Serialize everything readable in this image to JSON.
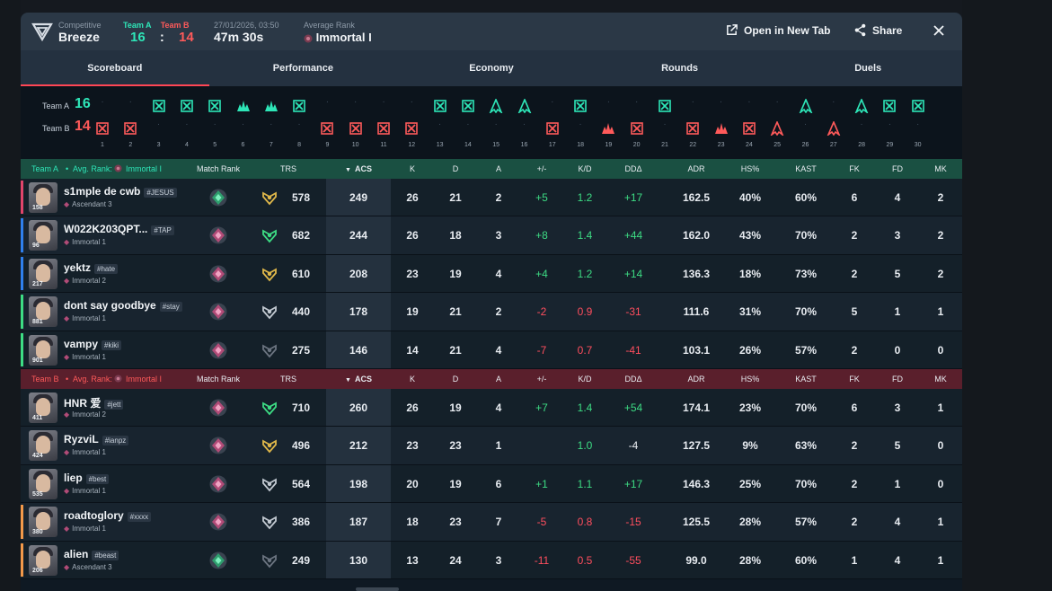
{
  "header": {
    "mode": "Competitive",
    "map": "Breeze",
    "team_a_label": "Team A",
    "team_b_label": "Team B",
    "score_a": "16",
    "score_sep": ":",
    "score_b": "14",
    "date": "27/01/2026, 03:50",
    "duration": "47m 30s",
    "avg_rank_label": "Average Rank",
    "avg_rank": "Immortal I",
    "open_tab_label": "Open in New Tab",
    "share_label": "Share"
  },
  "tabs": [
    "Scoreboard",
    "Performance",
    "Economy",
    "Rounds",
    "Duels"
  ],
  "active_tab": "Scoreboard",
  "timeline": {
    "team_a_label": "Team A",
    "team_b_label": "Team B",
    "score_a": "16",
    "score_b": "14",
    "rounds": [
      {
        "n": "1",
        "winner": "B",
        "type": "elim"
      },
      {
        "n": "2",
        "winner": "B",
        "type": "elim"
      },
      {
        "n": "3",
        "winner": "A",
        "type": "elim"
      },
      {
        "n": "4",
        "winner": "A",
        "type": "elim"
      },
      {
        "n": "5",
        "winner": "A",
        "type": "elim"
      },
      {
        "n": "6",
        "winner": "A",
        "type": "spike"
      },
      {
        "n": "7",
        "winner": "A",
        "type": "spike"
      },
      {
        "n": "8",
        "winner": "A",
        "type": "elim"
      },
      {
        "n": "9",
        "winner": "B",
        "type": "elim"
      },
      {
        "n": "10",
        "winner": "B",
        "type": "elim"
      },
      {
        "n": "11",
        "winner": "B",
        "type": "elim"
      },
      {
        "n": "12",
        "winner": "B",
        "type": "elim"
      },
      {
        "n": "13",
        "winner": "A",
        "type": "elim"
      },
      {
        "n": "14",
        "winner": "A",
        "type": "elim"
      },
      {
        "n": "15",
        "winner": "A",
        "type": "defuse"
      },
      {
        "n": "16",
        "winner": "A",
        "type": "defuse"
      },
      {
        "n": "17",
        "winner": "B",
        "type": "elim"
      },
      {
        "n": "18",
        "winner": "A",
        "type": "elim"
      },
      {
        "n": "19",
        "winner": "B",
        "type": "spike"
      },
      {
        "n": "20",
        "winner": "B",
        "type": "elim"
      },
      {
        "n": "21",
        "winner": "A",
        "type": "elim"
      },
      {
        "n": "22",
        "winner": "B",
        "type": "elim"
      },
      {
        "n": "23",
        "winner": "B",
        "type": "spike"
      },
      {
        "n": "24",
        "winner": "B",
        "type": "elim"
      },
      {
        "n": "25",
        "winner": "B",
        "type": "defuse"
      },
      {
        "n": "26",
        "winner": "A",
        "type": "defuse"
      },
      {
        "n": "27",
        "winner": "B",
        "type": "defuse"
      },
      {
        "n": "28",
        "winner": "A",
        "type": "defuse"
      },
      {
        "n": "29",
        "winner": "A",
        "type": "elim"
      },
      {
        "n": "30",
        "winner": "A",
        "type": "elim"
      }
    ]
  },
  "columns": {
    "match_rank": "Match Rank",
    "trs": "TRS",
    "acs": "ACS",
    "k": "K",
    "d": "D",
    "a": "A",
    "pm": "+/-",
    "kd": "K/D",
    "dd": "DDΔ",
    "adr": "ADR",
    "hs": "HS%",
    "kast": "KAST",
    "fk": "FK",
    "fd": "FD",
    "mk": "MK"
  },
  "team_a": {
    "label": "Team A",
    "avg_label": "Avg. Rank:",
    "avg_rank": "Immortal I",
    "players": [
      {
        "name": "s1mple de cwb",
        "tag": "#JESUS",
        "rank": "Ascendant 3",
        "level": "158",
        "trs": "578",
        "acs": "249",
        "k": "26",
        "d": "21",
        "a": "2",
        "pm": "+5",
        "kd": "1.2",
        "dd": "+17",
        "adr": "162.5",
        "hs": "40%",
        "kast": "60%",
        "fk": "6",
        "fd": "4",
        "mk": "2",
        "sign": "pos",
        "strip": "#e0456b",
        "mr": "green",
        "trsc": "gold"
      },
      {
        "name": "W022K203QPT...",
        "tag": "#TAP",
        "rank": "Immortal 1",
        "level": "96",
        "trs": "682",
        "acs": "244",
        "k": "26",
        "d": "18",
        "a": "3",
        "pm": "+8",
        "kd": "1.4",
        "dd": "+44",
        "adr": "162.0",
        "hs": "43%",
        "kast": "70%",
        "fk": "2",
        "fd": "3",
        "mk": "2",
        "sign": "pos",
        "strip": "#2f80ed",
        "mr": "pink",
        "trsc": "green"
      },
      {
        "name": "yektz",
        "tag": "#hate",
        "rank": "Immortal 2",
        "level": "217",
        "trs": "610",
        "acs": "208",
        "k": "23",
        "d": "19",
        "a": "4",
        "pm": "+4",
        "kd": "1.2",
        "dd": "+14",
        "adr": "136.3",
        "hs": "18%",
        "kast": "73%",
        "fk": "2",
        "fd": "5",
        "mk": "2",
        "sign": "pos",
        "strip": "#2f80ed",
        "mr": "pink",
        "trsc": "gold"
      },
      {
        "name": "dont say goodbye",
        "tag": "#stay",
        "rank": "Immortal 1",
        "level": "881",
        "trs": "440",
        "acs": "178",
        "k": "19",
        "d": "21",
        "a": "2",
        "pm": "-2",
        "kd": "0.9",
        "dd": "-31",
        "adr": "111.6",
        "hs": "31%",
        "kast": "70%",
        "fk": "5",
        "fd": "1",
        "mk": "1",
        "sign": "neg",
        "strip": "#3ddc84",
        "mr": "pink",
        "trsc": "silver"
      },
      {
        "name": "vampy",
        "tag": "#kiki",
        "rank": "Immortal 1",
        "level": "901",
        "trs": "275",
        "acs": "146",
        "k": "14",
        "d": "21",
        "a": "4",
        "pm": "-7",
        "kd": "0.7",
        "dd": "-41",
        "adr": "103.1",
        "hs": "26%",
        "kast": "57%",
        "fk": "2",
        "fd": "0",
        "mk": "0",
        "sign": "neg",
        "strip": "#3ddc84",
        "mr": "pink",
        "trsc": "dark"
      }
    ]
  },
  "team_b": {
    "label": "Team B",
    "avg_label": "Avg. Rank:",
    "avg_rank": "Immortal I",
    "players": [
      {
        "name": "HNR 爱",
        "tag": "#jett",
        "rank": "Immortal 2",
        "level": "411",
        "trs": "710",
        "acs": "260",
        "k": "26",
        "d": "19",
        "a": "4",
        "pm": "+7",
        "kd": "1.4",
        "dd": "+54",
        "adr": "174.1",
        "hs": "23%",
        "kast": "70%",
        "fk": "6",
        "fd": "3",
        "mk": "1",
        "sign": "pos",
        "strip": "",
        "mr": "pink",
        "trsc": "green"
      },
      {
        "name": "RyzviL",
        "tag": "#ianpz",
        "rank": "Immortal 1",
        "level": "424",
        "trs": "496",
        "acs": "212",
        "k": "23",
        "d": "23",
        "a": "1",
        "pm": "",
        "kd": "1.0",
        "dd": "-4",
        "adr": "127.5",
        "hs": "9%",
        "kast": "63%",
        "fk": "2",
        "fd": "5",
        "mk": "0",
        "sign": "neu",
        "strip": "",
        "mr": "pink",
        "trsc": "gold"
      },
      {
        "name": "liep",
        "tag": "#best",
        "rank": "Immortal 1",
        "level": "535",
        "trs": "564",
        "acs": "198",
        "k": "20",
        "d": "19",
        "a": "6",
        "pm": "+1",
        "kd": "1.1",
        "dd": "+17",
        "adr": "146.3",
        "hs": "25%",
        "kast": "70%",
        "fk": "2",
        "fd": "1",
        "mk": "0",
        "sign": "pos",
        "strip": "",
        "mr": "pink",
        "trsc": "silver"
      },
      {
        "name": "roadtoglory",
        "tag": "#xxxx",
        "rank": "Immortal 1",
        "level": "380",
        "trs": "386",
        "acs": "187",
        "k": "18",
        "d": "23",
        "a": "7",
        "pm": "-5",
        "kd": "0.8",
        "dd": "-15",
        "adr": "125.5",
        "hs": "28%",
        "kast": "57%",
        "fk": "2",
        "fd": "4",
        "mk": "1",
        "sign": "neg",
        "strip": "#f2994a",
        "mr": "pink",
        "trsc": "silver"
      },
      {
        "name": "alien",
        "tag": "#beast",
        "rank": "Ascendant 3",
        "level": "206",
        "trs": "249",
        "acs": "130",
        "k": "13",
        "d": "24",
        "a": "3",
        "pm": "-11",
        "kd": "0.5",
        "dd": "-55",
        "adr": "99.0",
        "hs": "28%",
        "kast": "60%",
        "fk": "1",
        "fd": "4",
        "mk": "1",
        "sign": "neg",
        "strip": "#f2994a",
        "mr": "green",
        "trsc": "dark"
      }
    ]
  },
  "colors": {
    "team_a": "#2ee6b8",
    "team_b": "#ff5a5a",
    "positive": "#3ddc84",
    "negative": "#ff4e5e",
    "accent": "#ff4655"
  }
}
